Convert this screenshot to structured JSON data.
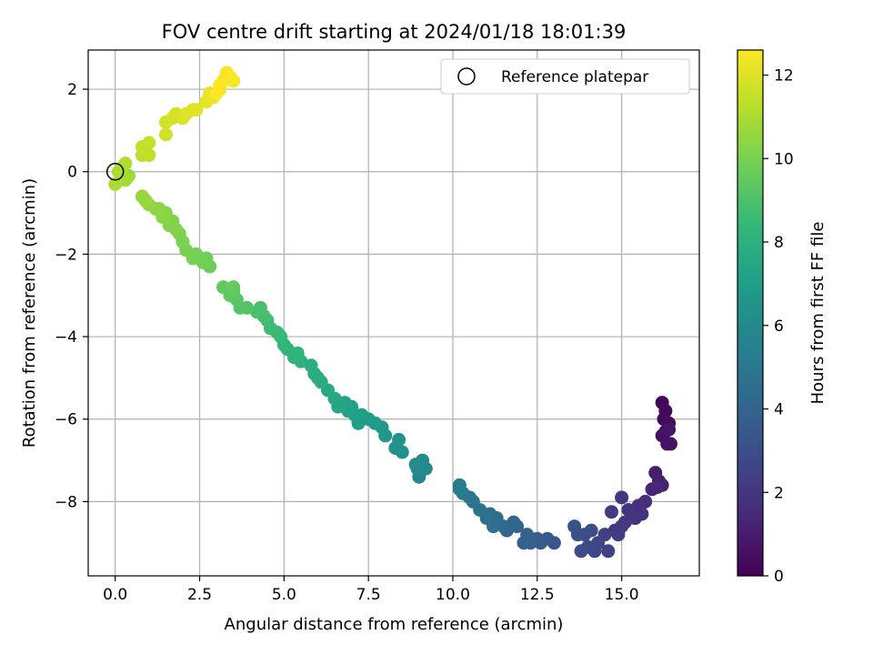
{
  "chart_data": {
    "type": "scatter",
    "title": "FOV centre drift starting at 2024/01/18 18:01:39",
    "xlabel": "Angular distance from reference (arcmin)",
    "ylabel": "Rotation from reference (arcmin)",
    "xlim": [
      -0.8,
      17.3
    ],
    "ylim": [
      -9.8,
      2.95
    ],
    "xticks": [
      0.0,
      2.5,
      5.0,
      7.5,
      10.0,
      12.5,
      15.0
    ],
    "xtick_labels": [
      "0.0",
      "2.5",
      "5.0",
      "7.5",
      "10.0",
      "12.5",
      "15.0"
    ],
    "yticks": [
      2,
      0,
      -2,
      -4,
      -6,
      -8
    ],
    "ytick_labels": [
      "2",
      "0",
      "−2",
      "−4",
      "−6",
      "−8"
    ],
    "grid": true,
    "legend": {
      "position": "upper right",
      "entries": [
        "Reference platepar"
      ]
    },
    "reference_point": {
      "x": 0,
      "y": 0
    },
    "colorbar": {
      "label": "Hours from first FF file",
      "range": [
        0,
        12.6
      ],
      "ticks": [
        0,
        2,
        4,
        6,
        8,
        10,
        12
      ],
      "tick_labels": [
        "0",
        "2",
        "4",
        "6",
        "8",
        "10",
        "12"
      ],
      "colormap": "viridis",
      "stops": [
        "#440154",
        "#482878",
        "#3e4989",
        "#31688e",
        "#26828e",
        "#1f9e89",
        "#35b779",
        "#6ece58",
        "#b5de2b",
        "#fde725"
      ]
    },
    "series": [
      {
        "points": [
          [
            16.2,
            -5.6,
            0.1
          ],
          [
            16.3,
            -5.8,
            0.2
          ],
          [
            16.25,
            -6.0,
            0.3
          ],
          [
            16.4,
            -6.1,
            0.4
          ],
          [
            16.3,
            -6.3,
            0.5
          ],
          [
            16.2,
            -6.4,
            0.55
          ],
          [
            16.35,
            -6.6,
            0.6
          ],
          [
            16.45,
            -6.6,
            0.65
          ],
          [
            16.4,
            -6.25,
            0.7
          ],
          [
            16.0,
            -7.3,
            1.0
          ],
          [
            16.1,
            -7.5,
            1.1
          ],
          [
            16.2,
            -7.6,
            1.2
          ],
          [
            15.9,
            -7.7,
            1.3
          ],
          [
            16.05,
            -7.65,
            1.35
          ],
          [
            15.7,
            -8.0,
            1.6
          ],
          [
            15.5,
            -8.1,
            1.7
          ],
          [
            15.6,
            -8.3,
            1.8
          ],
          [
            15.4,
            -8.4,
            1.9
          ],
          [
            15.2,
            -8.2,
            1.95
          ],
          [
            15.0,
            -7.9,
            2.0
          ],
          [
            15.1,
            -8.5,
            2.05
          ],
          [
            14.8,
            -8.7,
            2.1
          ],
          [
            14.7,
            -8.25,
            2.15
          ],
          [
            15.0,
            -8.6,
            2.2
          ],
          [
            14.9,
            -8.8,
            2.3
          ],
          [
            14.5,
            -8.8,
            2.4
          ],
          [
            14.6,
            -9.2,
            2.5
          ],
          [
            14.3,
            -9.0,
            2.6
          ],
          [
            14.2,
            -9.2,
            2.7
          ],
          [
            14.0,
            -9.1,
            2.8
          ],
          [
            13.9,
            -8.8,
            2.9
          ],
          [
            13.8,
            -9.2,
            3.0
          ],
          [
            14.1,
            -8.7,
            3.05
          ],
          [
            13.7,
            -8.8,
            3.1
          ],
          [
            13.6,
            -8.6,
            3.2
          ],
          [
            13.0,
            -9.0,
            3.4
          ],
          [
            12.8,
            -8.9,
            3.5
          ],
          [
            12.6,
            -9.0,
            3.6
          ],
          [
            12.5,
            -8.9,
            3.7
          ],
          [
            12.3,
            -9.0,
            3.8
          ],
          [
            12.1,
            -9.0,
            3.9
          ],
          [
            12.2,
            -8.8,
            3.95
          ],
          [
            11.9,
            -8.6,
            4.0
          ],
          [
            11.8,
            -8.5,
            4.1
          ],
          [
            11.6,
            -8.7,
            4.2
          ],
          [
            11.5,
            -8.6,
            4.3
          ],
          [
            11.3,
            -8.4,
            4.4
          ],
          [
            11.2,
            -8.6,
            4.5
          ],
          [
            11.1,
            -8.3,
            4.6
          ],
          [
            11.0,
            -8.4,
            4.7
          ],
          [
            10.8,
            -8.2,
            4.8
          ],
          [
            10.6,
            -8.0,
            4.9
          ],
          [
            10.5,
            -7.9,
            5.0
          ],
          [
            10.3,
            -7.8,
            5.1
          ],
          [
            10.2,
            -7.6,
            5.2
          ],
          [
            10.2,
            -7.7,
            5.3
          ],
          [
            9.0,
            -7.4,
            5.8
          ],
          [
            8.95,
            -7.2,
            5.9
          ],
          [
            9.1,
            -7.0,
            6.0
          ],
          [
            9.2,
            -7.2,
            6.05
          ],
          [
            8.9,
            -7.1,
            6.1
          ],
          [
            8.5,
            -6.8,
            6.3
          ],
          [
            8.3,
            -6.7,
            6.4
          ],
          [
            8.4,
            -6.5,
            6.5
          ],
          [
            8.0,
            -6.4,
            6.6
          ],
          [
            7.9,
            -6.2,
            6.7
          ],
          [
            7.7,
            -6.1,
            6.8
          ],
          [
            7.5,
            -6.0,
            6.9
          ],
          [
            7.3,
            -5.9,
            7.0
          ],
          [
            7.2,
            -6.1,
            7.05
          ],
          [
            7.0,
            -5.7,
            7.1
          ],
          [
            7.1,
            -5.9,
            7.15
          ],
          [
            6.9,
            -5.8,
            7.2
          ],
          [
            6.8,
            -5.6,
            7.3
          ],
          [
            6.6,
            -5.7,
            7.4
          ],
          [
            6.5,
            -5.5,
            7.5
          ],
          [
            6.3,
            -5.3,
            7.6
          ],
          [
            6.1,
            -5.1,
            7.7
          ],
          [
            6.0,
            -5.0,
            7.8
          ],
          [
            5.9,
            -4.9,
            7.85
          ],
          [
            5.8,
            -4.7,
            7.9
          ],
          [
            5.5,
            -4.6,
            8.0
          ],
          [
            5.4,
            -4.4,
            8.1
          ],
          [
            5.3,
            -4.5,
            8.15
          ],
          [
            5.1,
            -4.3,
            8.2
          ],
          [
            5.0,
            -4.2,
            8.3
          ],
          [
            4.9,
            -4.0,
            8.4
          ],
          [
            4.8,
            -3.9,
            8.5
          ],
          [
            4.6,
            -3.8,
            8.6
          ],
          [
            4.5,
            -3.6,
            8.7
          ],
          [
            4.4,
            -3.5,
            8.8
          ],
          [
            4.3,
            -3.3,
            8.9
          ],
          [
            4.2,
            -3.4,
            8.95
          ],
          [
            3.9,
            -3.3,
            9.1
          ],
          [
            3.7,
            -3.3,
            9.2
          ],
          [
            3.6,
            -3.1,
            9.3
          ],
          [
            3.5,
            -2.9,
            9.4
          ],
          [
            3.4,
            -3.0,
            9.45
          ],
          [
            3.2,
            -2.8,
            9.5
          ],
          [
            3.5,
            -2.8,
            9.55
          ],
          [
            2.8,
            -2.3,
            9.7
          ],
          [
            2.7,
            -2.1,
            9.8
          ],
          [
            2.6,
            -2.2,
            9.85
          ],
          [
            2.4,
            -2.0,
            9.9
          ],
          [
            2.3,
            -2.1,
            9.95
          ],
          [
            2.1,
            -1.9,
            10.0
          ],
          [
            2.0,
            -1.7,
            10.05
          ],
          [
            1.9,
            -1.5,
            10.1
          ],
          [
            1.8,
            -1.4,
            10.15
          ],
          [
            1.7,
            -1.2,
            10.2
          ],
          [
            1.6,
            -1.3,
            10.25
          ],
          [
            1.5,
            -1.0,
            10.3
          ],
          [
            1.4,
            -1.1,
            10.35
          ],
          [
            1.3,
            -0.9,
            10.4
          ],
          [
            1.2,
            -0.9,
            10.45
          ],
          [
            1.0,
            -0.8,
            10.5
          ],
          [
            0.9,
            -0.7,
            10.55
          ],
          [
            0.8,
            -0.6,
            10.6
          ],
          [
            0.4,
            -0.1,
            10.8
          ],
          [
            0.3,
            -0.2,
            10.85
          ],
          [
            0.2,
            -0.1,
            10.9
          ],
          [
            0.1,
            0.0,
            10.95
          ],
          [
            0.0,
            -0.3,
            11.0
          ],
          [
            0.2,
            0.1,
            11.05
          ],
          [
            0.3,
            0.2,
            11.1
          ],
          [
            0.8,
            0.4,
            11.3
          ],
          [
            0.9,
            0.6,
            11.35
          ],
          [
            1.0,
            0.4,
            11.4
          ],
          [
            0.8,
            0.6,
            11.45
          ],
          [
            1.0,
            0.7,
            11.5
          ],
          [
            1.5,
            0.9,
            11.7
          ],
          [
            1.5,
            1.2,
            11.75
          ],
          [
            1.7,
            1.3,
            11.8
          ],
          [
            1.8,
            1.4,
            11.85
          ],
          [
            2.0,
            1.3,
            11.9
          ],
          [
            2.1,
            1.4,
            11.95
          ],
          [
            2.3,
            1.5,
            12.0
          ],
          [
            2.4,
            1.5,
            12.05
          ],
          [
            2.7,
            1.7,
            12.15
          ],
          [
            2.8,
            1.9,
            12.2
          ],
          [
            2.9,
            1.8,
            12.25
          ],
          [
            3.1,
            2.0,
            12.3
          ],
          [
            3.2,
            2.2,
            12.35
          ],
          [
            3.4,
            2.3,
            12.4
          ],
          [
            3.5,
            2.2,
            12.45
          ],
          [
            3.3,
            2.4,
            12.5
          ],
          [
            3.0,
            1.9,
            12.55
          ],
          [
            3.1,
            2.1,
            12.6
          ]
        ]
      }
    ]
  }
}
